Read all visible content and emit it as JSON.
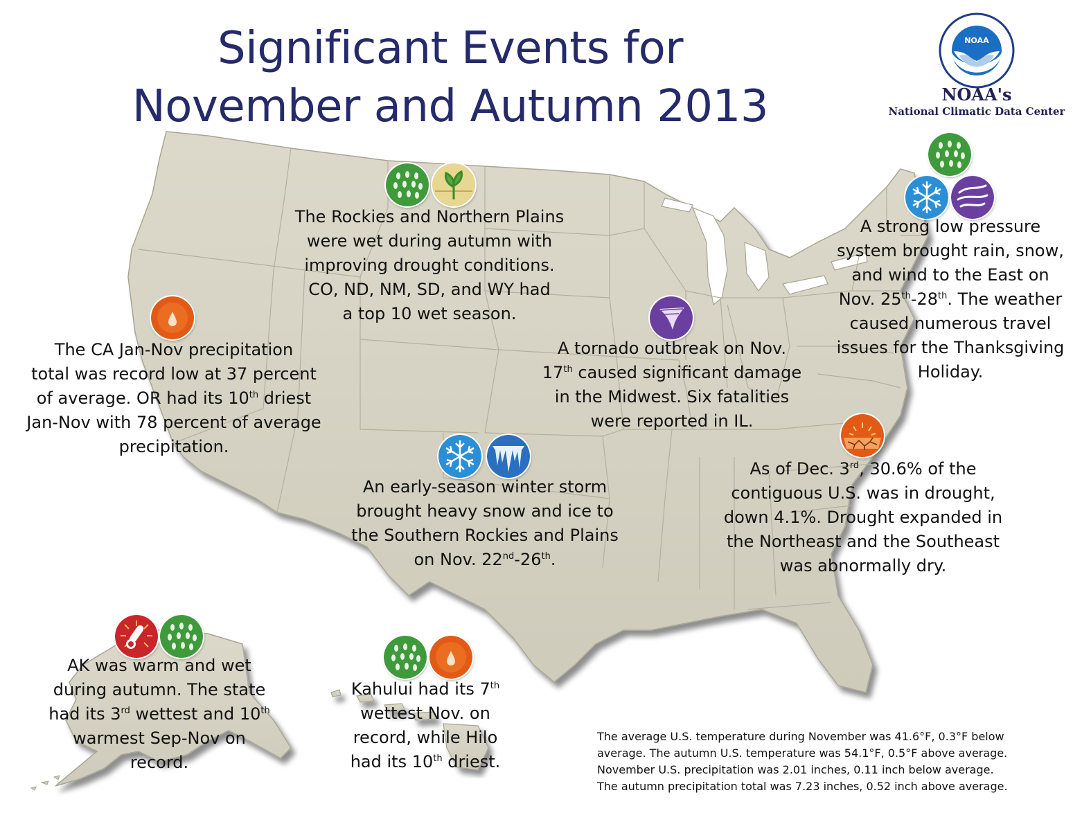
{
  "title": {
    "line1": "Significant Events for",
    "line2": "November and Autumn 2013"
  },
  "org": {
    "logo_text": "NOAA",
    "name": "NOAA's",
    "center": "National Climatic Data Center"
  },
  "colors": {
    "title": "#252a6b",
    "land": "#d4d1c2",
    "state_line": "#b9b5a6"
  },
  "icons": {
    "wet": "rain-drops-icon",
    "drought_improve": "drought-improvement-icon",
    "dry": "dry-drop-icon",
    "tornado": "tornado-icon",
    "snow": "snowflake-icon",
    "wind": "wind-icon",
    "ice": "icicle-icon",
    "drought": "cracked-earth-icon",
    "warm": "thermometer-icon"
  },
  "notes": {
    "rockies": {
      "l1": "The Rockies and Northern Plains",
      "l2": "were wet during autumn with",
      "l3": "improving drought conditions.",
      "l4": "CO, ND, NM, SD, and WY had",
      "l5": "a top 10 wet season."
    },
    "california": {
      "l1": "The CA Jan-Nov precipitation",
      "l2": "total was record low at 37 percent",
      "l3a": "of average. OR had its 10",
      "l3sup": "th",
      "l3b": " driest",
      "l4": "Jan-Nov with 78 percent of average",
      "l5": "precipitation."
    },
    "tornado": {
      "l1": "A tornado outbreak on Nov.",
      "l2sup": "th",
      "l2a": "17",
      "l2b": " caused significant damage",
      "l3": "in the Midwest. Six fatalities",
      "l4": "were reported in IL."
    },
    "east": {
      "l1": "A strong low pressure",
      "l2": "system brought rain, snow,",
      "l3": "and wind to the East on",
      "l4a": "Nov. 25",
      "l4sup1": "th",
      "l4b": "-28",
      "l4sup2": "th",
      "l4c": ". The weather",
      "l5": "caused numerous travel",
      "l6": "issues for the Thanksgiving",
      "l7": "Holiday."
    },
    "winter_storm": {
      "l1": "An early-season winter storm",
      "l2": "brought heavy snow and ice to",
      "l3": "the Southern Rockies and Plains",
      "l4a": "on Nov. 22",
      "l4sup1": "nd",
      "l4b": "-26",
      "l4sup2": "th",
      "l4c": "."
    },
    "drought": {
      "l1a": "As of Dec. 3",
      "l1sup": "rd",
      "l1b": ", 30.6% of the",
      "l2": "contiguous U.S. was in drought,",
      "l3": "down 4.1%. Drought expanded in",
      "l4": "the Northeast and the Southeast",
      "l5": "was abnormally dry."
    },
    "alaska": {
      "l1": "AK was warm and wet",
      "l2": "during autumn. The state",
      "l3a": "had its 3",
      "l3sup1": "rd",
      "l3b": " wettest and 10",
      "l3sup2": "th",
      "l4": "warmest Sep-Nov on",
      "l5": "record."
    },
    "hawaii": {
      "l1a": "Kahului had its 7",
      "l1sup": "th",
      "l2": "wettest Nov. on",
      "l3": "record, while Hilo",
      "l4a": "had its 10",
      "l4sup": "th",
      "l4b": " driest."
    }
  },
  "summary": {
    "l1": "The average U.S. temperature during November was 41.6°F, 0.3°F below",
    "l2": "average. The autumn U.S. temperature was 54.1°F, 0.5°F above average.",
    "l3": "November U.S. precipitation was 2.01 inches, 0.11 inch below average.",
    "l4": "The autumn precipitation total was 7.23 inches, 0.52 inch above average."
  }
}
